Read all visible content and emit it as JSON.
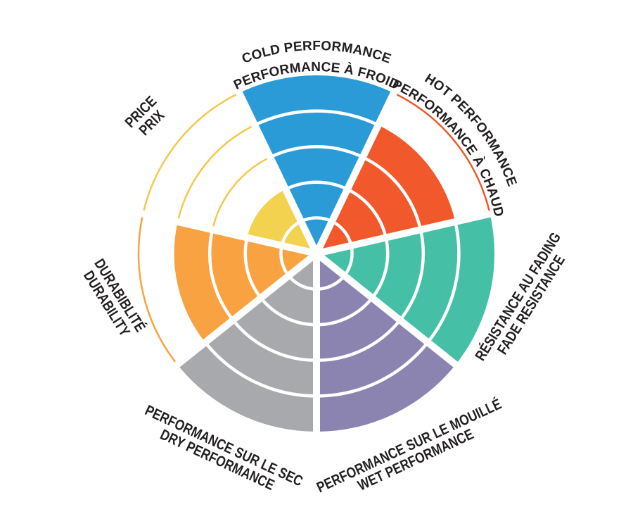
{
  "chart_data": {
    "type": "polar-wedge-rating-wheel",
    "rings": 5,
    "max_value": 5,
    "first_sector_center_angle_deg": 0,
    "direction": "clockwise",
    "background": "#FFFFFF",
    "divider_color": "#FFFFFF",
    "text_color": "#231F20",
    "sectors": [
      {
        "name": "cold-performance",
        "label_line1": "COLD PERFORMANCE",
        "label_line2": "PERFORMANCE À FROID",
        "value": 5,
        "color": "#2B9BD7"
      },
      {
        "name": "hot-performance",
        "label_line1": "HOT PERFORMANCE",
        "label_line2": "PERFORMANCE À CHAUD",
        "value": 4,
        "color": "#F1582B"
      },
      {
        "name": "fade-resistance",
        "label_line1": "RÉSISTANCE AU FADING",
        "label_line2": "FADE RESISTANCE",
        "value": 5,
        "color": "#45BFA6"
      },
      {
        "name": "wet-performance",
        "label_line1": "PERFORMANCE SUR LE MOUILLÉ",
        "label_line2": "WET PERFORMANCE",
        "value": 5,
        "color": "#8B84B0"
      },
      {
        "name": "dry-performance",
        "label_line1": "PERFORMANCE SUR LE SEC",
        "label_line2": "DRY PERFORMANCE",
        "value": 5,
        "color": "#A8A9AC"
      },
      {
        "name": "durability",
        "label_line1": "DURABIBLITÉ",
        "label_line2": "DURABILITY",
        "value": 4,
        "color": "#F9A242"
      },
      {
        "name": "price",
        "label_line1": "PRICE",
        "label_line2": "PRIX",
        "value": 2,
        "color": "#F2D24F",
        "arc_color": "#F5C84B"
      }
    ]
  }
}
